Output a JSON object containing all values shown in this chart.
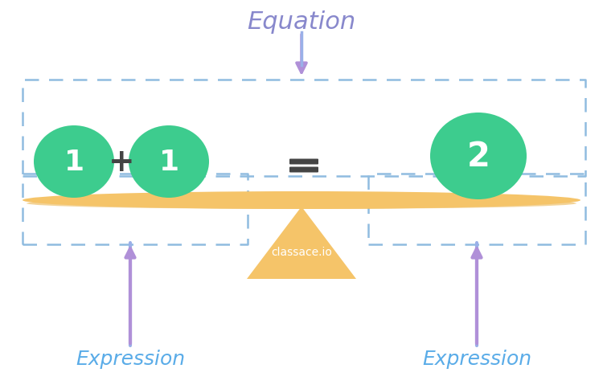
{
  "bg_color": "#ffffff",
  "circle_color": "#3dcc8e",
  "circle_text_color": "#ffffff",
  "circle_font_size": 26,
  "operator_color": "#444444",
  "operator_font_size": 28,
  "equals_color": "#444444",
  "equals_font_size": 32,
  "beam_color": "#f5c469",
  "beam_shadow_color": "#e8a830",
  "triangle_color": "#f5c469",
  "dashed_box_color": "#90bce0",
  "arrow_shaft_color": "#9ab0e8",
  "arrow_head_color": "#b090d8",
  "label_color": "#5aace8",
  "equation_label_color": "#8888cc",
  "title": "Equation",
  "expr_label": "Expression",
  "brand": "classace.io",
  "brand_color": "#ffffff",
  "brand_font_size": 10,
  "title_font_size": 22,
  "expr_font_size": 18
}
